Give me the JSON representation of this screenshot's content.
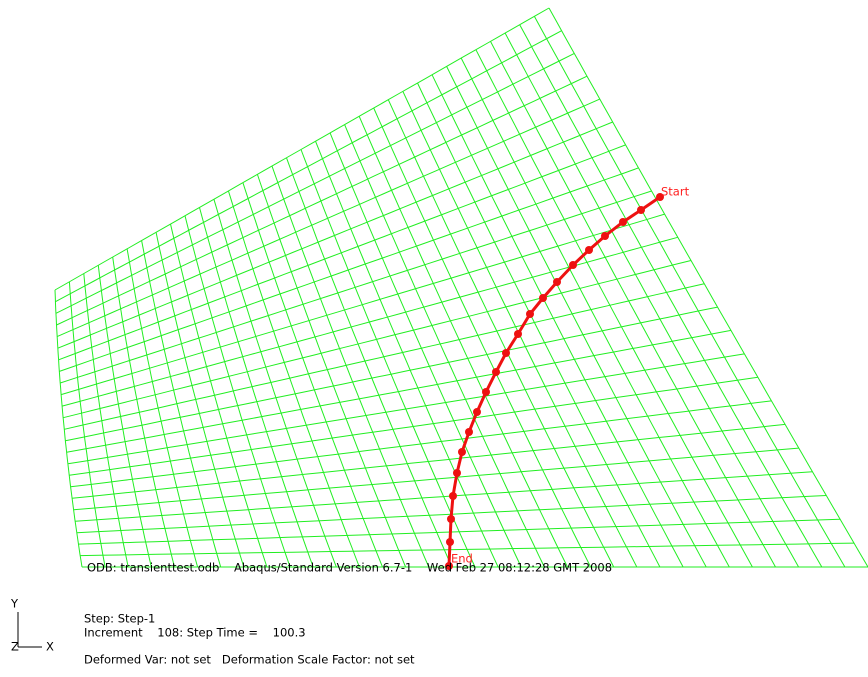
{
  "viewport": {
    "path_labels": {
      "start": "Start",
      "end": "End"
    },
    "triad": {
      "y": "Y",
      "z": "Z",
      "x": "X"
    },
    "info": {
      "odb_line": "ODB: transienttest.odb    Abaqus/Standard Version 6.7-1    Wed Feb 27 08:12:28 GMT 2008",
      "step": "Step: Step-1",
      "increment": "Increment    108: Step Time =    100.3",
      "deformed": "Deformed Var: not set   Deformation Scale Factor: not set"
    }
  }
}
